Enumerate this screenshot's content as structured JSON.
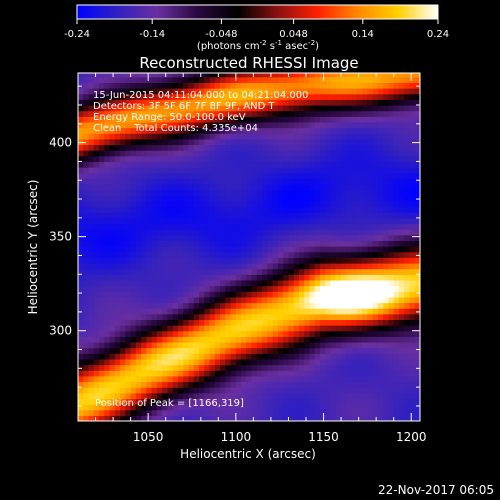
{
  "chart_data": {
    "type": "heatmap",
    "title": "Reconstructed RHESSI Image",
    "xlabel": "Heliocentric X (arcsec)",
    "ylabel": "Heliocentric Y (arcsec)",
    "xlim": [
      1010,
      1205
    ],
    "ylim": [
      252,
      437
    ],
    "x_ticks": [
      1050,
      1100,
      1150,
      1200
    ],
    "y_ticks": [
      300,
      350,
      400
    ],
    "colorbar": {
      "range": [
        -0.24,
        0.24
      ],
      "tick_values": [
        -0.24,
        -0.14,
        -0.048,
        0.048,
        0.14,
        0.24
      ],
      "tick_labels": [
        "-0.24",
        "-0.14",
        "-0.048",
        "0.048",
        "0.14",
        "0.24"
      ],
      "unit_label": "(photons cm",
      "unit_exp1": "-2",
      "unit_mid": " s",
      "unit_exp2": "-1",
      "unit_end": " asec",
      "unit_exp3": "-2",
      "unit_close": ")",
      "colormap": [
        "#0000ff",
        "#3020c0",
        "#6a2fa0",
        "#2a0840",
        "#000000",
        "#8a1010",
        "#ff2000",
        "#ff8800",
        "#ffd000",
        "#ffffff"
      ]
    },
    "annotations": {
      "line1": "15-Jun-2015 04:11:04.000 to 04:21:04.000",
      "line2": "Detectors: 3F 5F 6F 7F 8F 9F, AND T",
      "line3": "Energy Range: 50.0-100.0 keV",
      "line4": "Clean    Total Counts: 4.335e+04",
      "peak": "Position of Peak = [1166,319]"
    },
    "peak": [
      1166,
      319
    ],
    "emission_ridges": [
      {
        "name": "bright band lower",
        "points": [
          [
            1010,
            262
          ],
          [
            1050,
            280
          ],
          [
            1100,
            300
          ],
          [
            1150,
            318
          ],
          [
            1205,
            325
          ]
        ]
      },
      {
        "name": "bright band upper",
        "points": [
          [
            1010,
            405
          ],
          [
            1050,
            415
          ],
          [
            1100,
            425
          ],
          [
            1150,
            432
          ],
          [
            1205,
            437
          ]
        ]
      },
      {
        "name": "negative trough",
        "points": [
          [
            1010,
            350
          ],
          [
            1050,
            358
          ],
          [
            1100,
            362
          ],
          [
            1150,
            375
          ],
          [
            1205,
            375
          ]
        ]
      }
    ]
  },
  "footer": {
    "date": "22-Nov-2017 06:05"
  }
}
